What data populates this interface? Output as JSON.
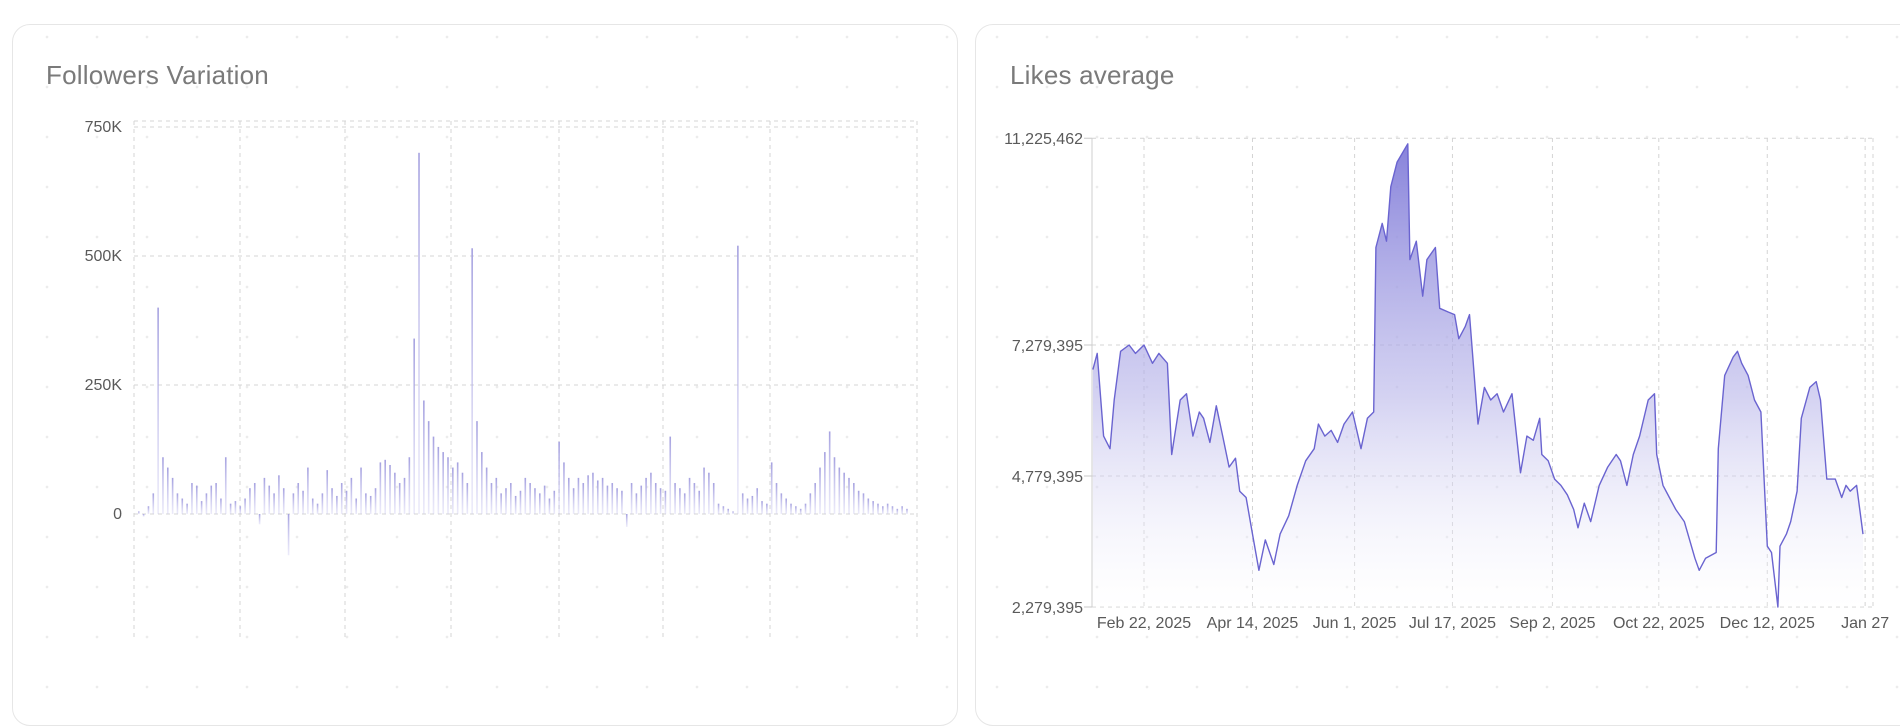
{
  "charts_titles": {
    "left": "Followers Variation",
    "right": "Likes average"
  },
  "colors": {
    "line": "#6a64d0",
    "bar": "#a9a5e2",
    "grid": "#d4d4d4"
  },
  "chart_data": [
    {
      "type": "bar",
      "title": "Followers Variation",
      "xlabel": "",
      "ylabel": "",
      "ylim": [
        -250000,
        750000
      ],
      "y_ticks": [
        {
          "value": 750000,
          "label": "750K"
        },
        {
          "value": 500000,
          "label": "500K"
        },
        {
          "value": 250000,
          "label": "250K"
        },
        {
          "value": 0,
          "label": "0"
        }
      ],
      "grid": true,
      "values_k": [
        5,
        -5,
        15,
        40,
        400,
        110,
        90,
        70,
        40,
        30,
        20,
        60,
        55,
        25,
        40,
        55,
        60,
        30,
        110,
        20,
        25,
        15,
        30,
        50,
        60,
        -20,
        70,
        55,
        40,
        75,
        50,
        -80,
        40,
        60,
        45,
        90,
        30,
        20,
        40,
        85,
        50,
        35,
        60,
        45,
        70,
        30,
        90,
        40,
        35,
        50,
        100,
        105,
        95,
        80,
        60,
        70,
        110,
        340,
        700,
        220,
        180,
        150,
        130,
        120,
        110,
        90,
        100,
        80,
        60,
        515,
        180,
        120,
        90,
        60,
        70,
        40,
        50,
        60,
        35,
        45,
        70,
        60,
        50,
        40,
        55,
        30,
        45,
        140,
        100,
        70,
        50,
        70,
        60,
        75,
        80,
        65,
        70,
        55,
        60,
        50,
        45,
        -25,
        60,
        40,
        55,
        70,
        80,
        60,
        50,
        45,
        150,
        60,
        50,
        40,
        70,
        60,
        45,
        90,
        80,
        60,
        20,
        15,
        10,
        5,
        520,
        40,
        30,
        35,
        50,
        25,
        20,
        100,
        60,
        40,
        30,
        20,
        15,
        10,
        20,
        40,
        60,
        90,
        120,
        160,
        110,
        90,
        80,
        70,
        60,
        45,
        40,
        30,
        25,
        20,
        15,
        20,
        15,
        10,
        15,
        10
      ]
    },
    {
      "type": "area",
      "title": "Likes average",
      "xlabel": "",
      "ylabel": "",
      "x_unit": "day of year 2025",
      "y_unit": "millions",
      "ylim": [
        2.279395,
        11.225462
      ],
      "y_ticks": [
        {
          "value": 11.225462,
          "label": "11,225,462"
        },
        {
          "value": 7.279395,
          "label": "7,279,395"
        },
        {
          "value": 4.779395,
          "label": "4,779,395"
        },
        {
          "value": 2.279395,
          "label": "2,279,395"
        }
      ],
      "x_ticks": [
        {
          "day": 53,
          "label": "Feb 22, 2025"
        },
        {
          "day": 104,
          "label": "Apr 14, 2025"
        },
        {
          "day": 152,
          "label": "Jun 1, 2025"
        },
        {
          "day": 198,
          "label": "Jul 17, 2025"
        },
        {
          "day": 245,
          "label": "Sep 2, 2025"
        },
        {
          "day": 295,
          "label": "Oct 22, 2025"
        },
        {
          "day": 346,
          "label": "Dec 12, 2025"
        },
        {
          "day": 392,
          "label": "Jan 27"
        }
      ],
      "grid": true,
      "points": [
        [
          29,
          6.81
        ],
        [
          31,
          7.12
        ],
        [
          34,
          5.54
        ],
        [
          37,
          5.3
        ],
        [
          39,
          6.23
        ],
        [
          42,
          7.16
        ],
        [
          46,
          7.28
        ],
        [
          49,
          7.12
        ],
        [
          53,
          7.28
        ],
        [
          57,
          6.93
        ],
        [
          60,
          7.12
        ],
        [
          64,
          6.93
        ],
        [
          66,
          5.19
        ],
        [
          70,
          6.23
        ],
        [
          73,
          6.35
        ],
        [
          76,
          5.54
        ],
        [
          79,
          6.0
        ],
        [
          81,
          5.88
        ],
        [
          84,
          5.42
        ],
        [
          87,
          6.12
        ],
        [
          90,
          5.54
        ],
        [
          93,
          4.95
        ],
        [
          96,
          5.12
        ],
        [
          98,
          4.49
        ],
        [
          101,
          4.37
        ],
        [
          104,
          3.67
        ],
        [
          107,
          2.98
        ],
        [
          110,
          3.56
        ],
        [
          114,
          3.09
        ],
        [
          117,
          3.67
        ],
        [
          121,
          4.02
        ],
        [
          125,
          4.6
        ],
        [
          129,
          5.07
        ],
        [
          133,
          5.3
        ],
        [
          135,
          5.77
        ],
        [
          138,
          5.54
        ],
        [
          141,
          5.65
        ],
        [
          144,
          5.42
        ],
        [
          147,
          5.77
        ],
        [
          151,
          6.0
        ],
        [
          155,
          5.3
        ],
        [
          158,
          5.88
        ],
        [
          161,
          6.0
        ],
        [
          162,
          9.14
        ],
        [
          165,
          9.6
        ],
        [
          167,
          9.26
        ],
        [
          169,
          10.3
        ],
        [
          172,
          10.77
        ],
        [
          177,
          11.12
        ],
        [
          178,
          8.91
        ],
        [
          181,
          9.26
        ],
        [
          184,
          8.21
        ],
        [
          186,
          8.91
        ],
        [
          190,
          9.14
        ],
        [
          192,
          7.98
        ],
        [
          196,
          7.91
        ],
        [
          199,
          7.86
        ],
        [
          201,
          7.4
        ],
        [
          204,
          7.63
        ],
        [
          206,
          7.86
        ],
        [
          210,
          5.77
        ],
        [
          213,
          6.47
        ],
        [
          216,
          6.23
        ],
        [
          219,
          6.35
        ],
        [
          222,
          6.0
        ],
        [
          226,
          6.35
        ],
        [
          230,
          4.84
        ],
        [
          233,
          5.54
        ],
        [
          236,
          5.46
        ],
        [
          239,
          5.88
        ],
        [
          240,
          5.19
        ],
        [
          243,
          5.07
        ],
        [
          246,
          4.72
        ],
        [
          249,
          4.6
        ],
        [
          252,
          4.42
        ],
        [
          255,
          4.14
        ],
        [
          257,
          3.79
        ],
        [
          260,
          4.26
        ],
        [
          263,
          3.91
        ],
        [
          267,
          4.6
        ],
        [
          271,
          4.95
        ],
        [
          275,
          5.19
        ],
        [
          277,
          5.07
        ],
        [
          280,
          4.6
        ],
        [
          283,
          5.19
        ],
        [
          286,
          5.54
        ],
        [
          290,
          6.23
        ],
        [
          293,
          6.35
        ],
        [
          294,
          5.19
        ],
        [
          297,
          4.6
        ],
        [
          300,
          4.37
        ],
        [
          303,
          4.14
        ],
        [
          307,
          3.91
        ],
        [
          312,
          3.21
        ],
        [
          314,
          2.98
        ],
        [
          317,
          3.21
        ],
        [
          322,
          3.32
        ],
        [
          323,
          5.3
        ],
        [
          326,
          6.7
        ],
        [
          330,
          7.05
        ],
        [
          332,
          7.16
        ],
        [
          334,
          6.93
        ],
        [
          337,
          6.7
        ],
        [
          340,
          6.23
        ],
        [
          343,
          6.0
        ],
        [
          346,
          3.44
        ],
        [
          348,
          3.32
        ],
        [
          351,
          2.28
        ],
        [
          352,
          3.44
        ],
        [
          355,
          3.67
        ],
        [
          357,
          3.91
        ],
        [
          360,
          4.49
        ],
        [
          362,
          5.88
        ],
        [
          366,
          6.47
        ],
        [
          369,
          6.58
        ],
        [
          371,
          6.23
        ],
        [
          374,
          4.72
        ],
        [
          378,
          4.72
        ],
        [
          381,
          4.37
        ],
        [
          383,
          4.6
        ],
        [
          385,
          4.49
        ],
        [
          388,
          4.6
        ],
        [
          391,
          3.67
        ]
      ]
    }
  ]
}
